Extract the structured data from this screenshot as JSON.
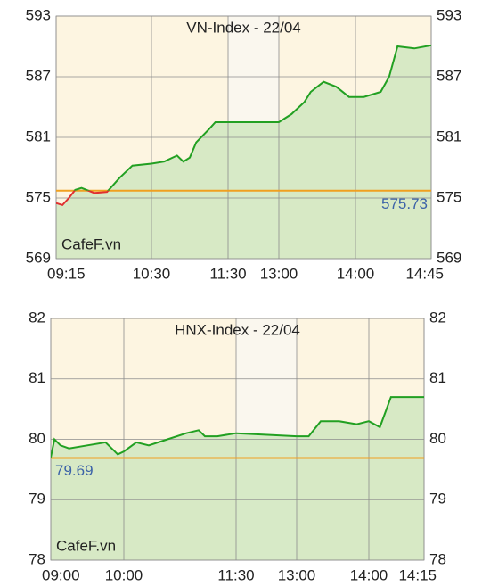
{
  "chart_data": [
    {
      "type": "line",
      "title": "VN-Index - 22/04",
      "watermark": "CafeF.vn",
      "x": [
        "09:15",
        "09:20",
        "09:25",
        "09:30",
        "09:35",
        "09:45",
        "09:55",
        "10:05",
        "10:15",
        "10:30",
        "10:40",
        "10:50",
        "10:55",
        "11:00",
        "11:05",
        "11:15",
        "11:20",
        "11:30",
        "13:00",
        "13:10",
        "13:20",
        "13:25",
        "13:35",
        "13:45",
        "13:55",
        "14:05",
        "14:15",
        "14:20",
        "14:25",
        "14:35",
        "14:45"
      ],
      "values": [
        574.5,
        574.3,
        575.0,
        575.8,
        576.0,
        575.5,
        575.6,
        577.0,
        578.2,
        578.4,
        578.6,
        579.2,
        578.6,
        579.0,
        580.5,
        581.8,
        582.5,
        582.5,
        582.5,
        583.3,
        584.5,
        585.5,
        586.5,
        586.0,
        585.0,
        585.0,
        585.5,
        587.0,
        590.0,
        589.8,
        590.1
      ],
      "color": "#22a022",
      "below_color": "#e03030",
      "area_color": "#d3e8c2",
      "reference": 575.73,
      "reference_color": "#f0a020",
      "ylim": [
        569,
        593
      ],
      "yticks": [
        569,
        575,
        581,
        587,
        593
      ],
      "xticks": [
        "09:15",
        "10:30",
        "11:30",
        "13:00",
        "14:00",
        "14:45"
      ],
      "grid": true
    },
    {
      "type": "line",
      "title": "HNX-Index - 22/04",
      "watermark": "CafeF.vn",
      "x": [
        "09:00",
        "09:03",
        "09:08",
        "09:15",
        "09:30",
        "09:45",
        "09:55",
        "10:00",
        "10:10",
        "10:20",
        "10:35",
        "10:50",
        "11:00",
        "11:05",
        "11:15",
        "11:30",
        "13:00",
        "13:10",
        "13:20",
        "13:35",
        "13:50",
        "14:00",
        "14:03",
        "14:06",
        "14:15"
      ],
      "values": [
        79.7,
        80.0,
        79.9,
        79.85,
        79.9,
        79.95,
        79.75,
        79.8,
        79.95,
        79.9,
        80.0,
        80.1,
        80.15,
        80.05,
        80.05,
        80.1,
        80.05,
        80.05,
        80.3,
        80.3,
        80.25,
        80.3,
        80.2,
        80.7,
        80.7
      ],
      "color": "#22a022",
      "below_color": "#e03030",
      "area_color": "#d3e8c2",
      "reference": 79.69,
      "reference_color": "#f0a020",
      "ylim": [
        78,
        82
      ],
      "yticks": [
        78,
        79,
        80,
        81,
        82
      ],
      "xticks": [
        "09:00",
        "10:00",
        "11:30",
        "13:00",
        "14:00",
        "14:15"
      ],
      "grid": true
    }
  ]
}
